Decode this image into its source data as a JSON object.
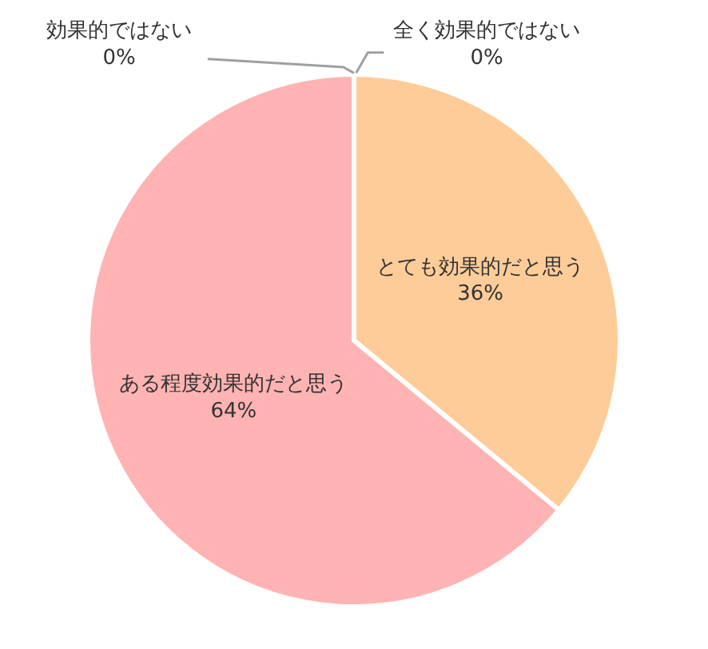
{
  "chart_data": {
    "type": "pie",
    "categories": [
      "とても効果的だと思う",
      "ある程度効果的だと思う",
      "効果的ではない",
      "全く効果的ではない"
    ],
    "values": [
      36,
      64,
      0,
      0
    ],
    "value_labels": [
      "36%",
      "64%",
      "0%",
      "0%"
    ],
    "colors": [
      "#fdcc99",
      "#ffb3b3",
      "#c0c0c0",
      "#a0a0a0"
    ],
    "legend": false
  }
}
